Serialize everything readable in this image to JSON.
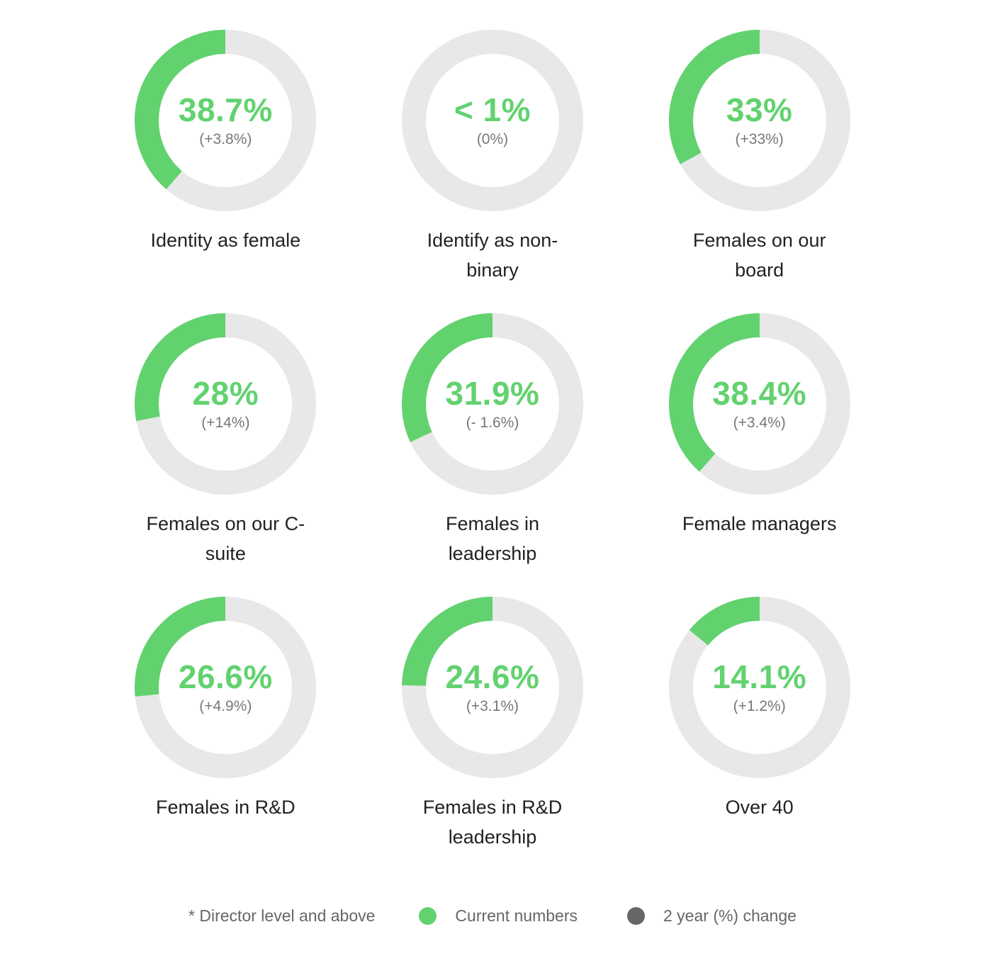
{
  "colors": {
    "current": "#62d26f",
    "track": "#e8e8e8",
    "change": "#666666"
  },
  "chart_data": {
    "type": "donut",
    "items": [
      {
        "label": "Identity as female",
        "value": 38.7,
        "value_text": "38.7%",
        "change_text": "(+3.8%)"
      },
      {
        "label": "Identify as non-binary",
        "value": 0,
        "value_text": "< 1%",
        "change_text": "(0%)"
      },
      {
        "label": "Females on our board",
        "value": 33,
        "value_text": "33%",
        "change_text": "(+33%)"
      },
      {
        "label": "Females on our C-suite",
        "value": 28,
        "value_text": "28%",
        "change_text": "(+14%)"
      },
      {
        "label": "Females in leadership",
        "value": 31.9,
        "value_text": "31.9%",
        "change_text": "(- 1.6%)"
      },
      {
        "label": "Female managers",
        "value": 38.4,
        "value_text": "38.4%",
        "change_text": "(+3.4%)"
      },
      {
        "label": "Females in R&D",
        "value": 26.6,
        "value_text": "26.6%",
        "change_text": "(+4.9%)"
      },
      {
        "label": "Females in R&D leadership",
        "value": 24.6,
        "value_text": "24.6%",
        "change_text": "(+3.1%)"
      },
      {
        "label": "Over 40",
        "value": 14.1,
        "value_text": "14.1%",
        "change_text": "(+1.2%)"
      }
    ]
  },
  "legend": {
    "note": "* Director level and above",
    "current_label": "Current numbers",
    "change_label": "2 year (%) change"
  }
}
